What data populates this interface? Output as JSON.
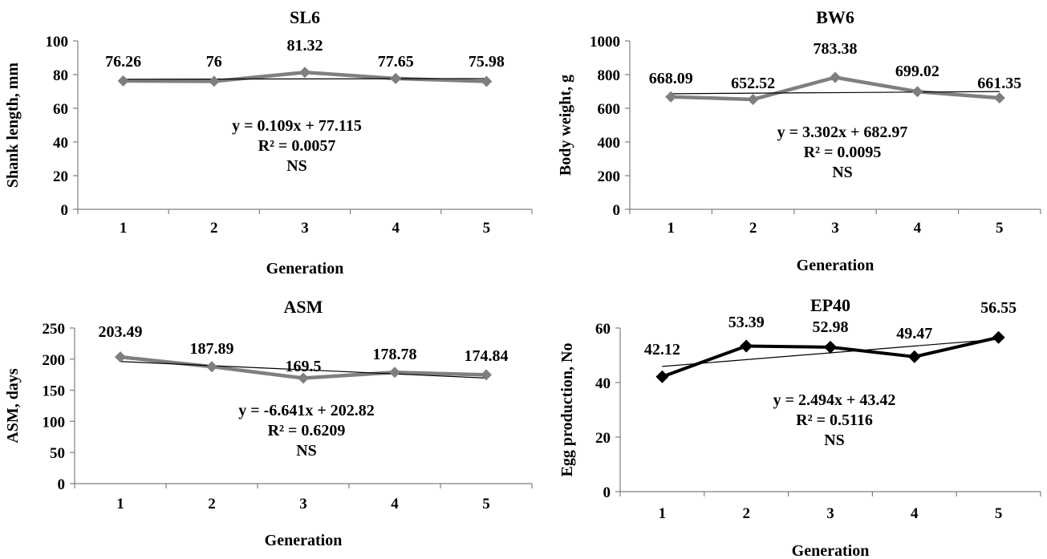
{
  "chart_data": [
    {
      "type": "line",
      "title": "SL6",
      "xlabel": "Generation",
      "ylabel": "Shank length, mm",
      "categories": [
        "1",
        "2",
        "3",
        "4",
        "5"
      ],
      "y_ticks": [
        "0",
        "20",
        "40",
        "60",
        "80",
        "100"
      ],
      "ylim": [
        0,
        100
      ],
      "series": [
        {
          "values": [
            76.26,
            76,
            81.32,
            77.65,
            75.98
          ],
          "color": "#7f7f7f",
          "marker": "diamond"
        }
      ],
      "data_labels": [
        "76.26",
        "76",
        "81.32",
        "77.65",
        "75.98"
      ],
      "trendline": {
        "slope": 0.109,
        "intercept": 77.115
      },
      "annotation": [
        "y = 0.109x + 77.115",
        "R² = 0.0057",
        "NS"
      ],
      "grid": false
    },
    {
      "type": "line",
      "title": "BW6",
      "xlabel": "Generation",
      "ylabel": "Body weight, g",
      "categories": [
        "1",
        "2",
        "3",
        "4",
        "5"
      ],
      "y_ticks": [
        "0",
        "200",
        "400",
        "600",
        "800",
        "1000"
      ],
      "ylim": [
        0,
        1000
      ],
      "series": [
        {
          "values": [
            668.09,
            652.52,
            783.38,
            699.02,
            661.35
          ],
          "color": "#7f7f7f",
          "marker": "diamond"
        }
      ],
      "data_labels": [
        "668.09",
        "652.52",
        "783.38",
        "699.02",
        "661.35"
      ],
      "trendline": {
        "slope": 3.302,
        "intercept": 682.97
      },
      "annotation": [
        "y = 3.302x + 682.97",
        "R² = 0.0095",
        "NS"
      ],
      "grid": false
    },
    {
      "type": "line",
      "title": "ASM",
      "xlabel": "Generation",
      "ylabel": "ASM, days",
      "categories": [
        "1",
        "2",
        "3",
        "4",
        "5"
      ],
      "y_ticks": [
        "0",
        "50",
        "100",
        "150",
        "200",
        "250"
      ],
      "ylim": [
        0,
        250
      ],
      "series": [
        {
          "values": [
            203.49,
            187.89,
            169.5,
            178.78,
            174.84
          ],
          "color": "#7f7f7f",
          "marker": "diamond"
        }
      ],
      "data_labels": [
        "203.49",
        "187.89",
        "169.5",
        "178.78",
        "174.84"
      ],
      "trendline": {
        "slope": -6.641,
        "intercept": 202.82
      },
      "annotation": [
        "y = -6.641x + 202.82",
        "R² = 0.6209",
        "NS"
      ],
      "grid": false
    },
    {
      "type": "line",
      "title": "EP40",
      "xlabel": "Generation",
      "ylabel": "Egg production, No",
      "categories": [
        "1",
        "2",
        "3",
        "4",
        "5"
      ],
      "y_ticks": [
        "0",
        "20",
        "40",
        "60"
      ],
      "ylim": [
        0,
        60
      ],
      "series": [
        {
          "values": [
            42.12,
            53.39,
            52.98,
            49.47,
            56.55
          ],
          "color": "#000000",
          "marker": "diamond"
        }
      ],
      "data_labels": [
        "42.12",
        "53.39",
        "52.98",
        "49.47",
        "56.55"
      ],
      "trendline": {
        "slope": 2.494,
        "intercept": 43.42
      },
      "annotation": [
        "y = 2.494x + 43.42",
        "R² = 0.5116",
        "NS"
      ],
      "grid": false
    }
  ]
}
